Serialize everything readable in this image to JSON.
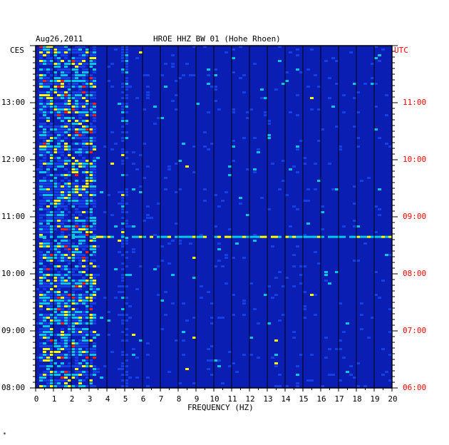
{
  "header": {
    "date": "Aug26,2011",
    "station": "HROE HHZ BW 01 (Hohe Rhoen)",
    "left_zone": "CES",
    "right_zone": "UTC"
  },
  "chart_data": {
    "type": "heatmap",
    "title": "HROE HHZ BW 01 (Hohe Rhoen)",
    "xlabel": "FREQUENCY (HZ)",
    "ylabel": "",
    "xlim": [
      0,
      20
    ],
    "x_ticks": [
      "0",
      "1",
      "2",
      "3",
      "4",
      "5",
      "6",
      "7",
      "8",
      "9",
      "10",
      "11",
      "12",
      "13",
      "14",
      "15",
      "16",
      "17",
      "18",
      "19",
      "20"
    ],
    "y_ticks_left": [
      "08:00",
      "09:00",
      "10:00",
      "11:00",
      "12:00",
      "13:00"
    ],
    "y_ticks_right": [
      "06:00",
      "07:00",
      "08:00",
      "09:00",
      "10:00",
      "11:00"
    ],
    "colors": {
      "background": "#0a1eb4",
      "low": "#1440e6",
      "mid": "#00c8e6",
      "high": "#ffff00",
      "peak": "#ff2000"
    },
    "features": [
      {
        "kind": "band",
        "f_from": 0.2,
        "f_to": 3.2,
        "intensity": "high"
      },
      {
        "kind": "line",
        "f": 4.9,
        "intensity": "mid"
      },
      {
        "kind": "tremor-row",
        "time_cet": "10:40",
        "f_from": 0,
        "f_to": 20,
        "intensity": "mid"
      }
    ]
  },
  "footer_mark": "*"
}
